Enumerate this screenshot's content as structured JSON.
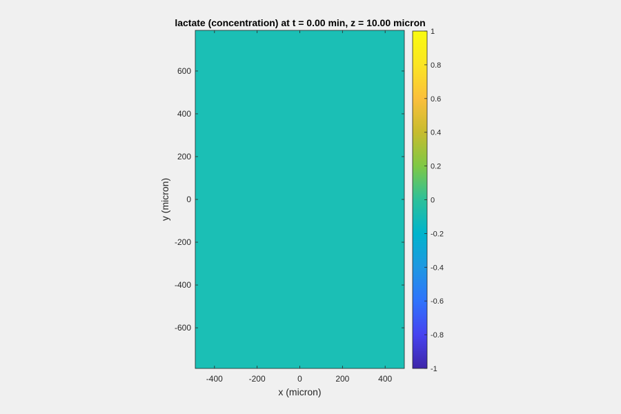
{
  "chart_data": {
    "type": "heatmap",
    "title": "lactate (concentration) at t = 0.00 min, z = 10.00 micron",
    "xlabel": "x (micron)",
    "ylabel": "y (micron)",
    "xlim": [
      -490,
      490
    ],
    "ylim": [
      -790,
      790
    ],
    "xticks": [
      -400,
      -200,
      0,
      200,
      400
    ],
    "xtick_labels": [
      "-400",
      "-200",
      "0",
      "200",
      "400"
    ],
    "yticks": [
      -600,
      -400,
      -200,
      0,
      200,
      400,
      600
    ],
    "ytick_labels": [
      "-600",
      "-400",
      "-200",
      "0",
      "200",
      "400",
      "600"
    ],
    "field": {
      "value": 0,
      "uniform": true,
      "fill_color": "#1bbfb5"
    },
    "colorbar": {
      "colormap": "parula",
      "clim": [
        -1,
        1
      ],
      "ticks": [
        -1,
        -0.8,
        -0.6,
        -0.4,
        -0.2,
        0,
        0.2,
        0.4,
        0.6,
        0.8,
        1
      ],
      "tick_labels": [
        "-1",
        "-0.8",
        "-0.6",
        "-0.4",
        "-0.2",
        "0",
        "0.2",
        "0.4",
        "0.6",
        "0.8",
        "1"
      ],
      "stops": [
        "#3e26a8",
        "#4743f0",
        "#2f73fc",
        "#1e98e2",
        "#00b4cc",
        "#2cc09a",
        "#7fc845",
        "#c7bc2e",
        "#fbbf3c",
        "#fbe523",
        "#f9fb0e"
      ]
    },
    "grid": false,
    "legend": "none"
  },
  "colors": {
    "background": "#f0f0f0",
    "axis": "#262626",
    "title": "#000000"
  }
}
